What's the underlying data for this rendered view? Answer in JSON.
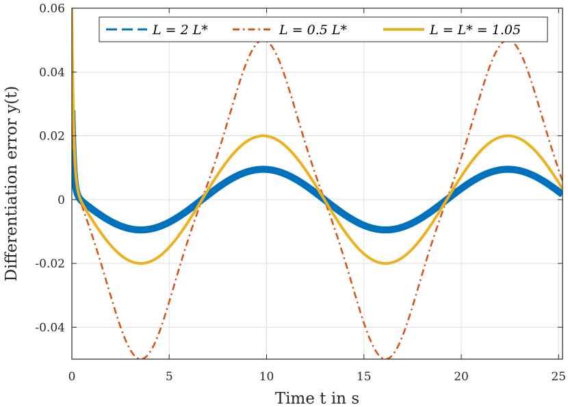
{
  "chart_data": {
    "type": "line",
    "xlabel": "Time t in s",
    "ylabel": "Differentiation error y(t)",
    "xlim": [
      0,
      25.2
    ],
    "ylim": [
      -0.05,
      0.06
    ],
    "xticks": [
      0,
      5,
      10,
      15,
      20,
      25
    ],
    "xtick_labels": [
      "0",
      "5",
      "10",
      "15",
      "20",
      "25"
    ],
    "yticks": [
      -0.04,
      -0.02,
      0,
      0.02,
      0.04,
      0.06
    ],
    "ytick_labels": [
      "-0.04",
      "-0.02",
      "0",
      "0.02",
      "0.04",
      "0.06"
    ],
    "grid": true,
    "legend_position": "top-right",
    "period": 12.57,
    "series": [
      {
        "name": "L = 2 L*",
        "color": "#0072BD",
        "style": "dashed",
        "amplitude": 0.0095,
        "chatter_band": 0.0022,
        "transient_start": 0.028,
        "x": [
          0.4,
          3.3,
          9.6,
          15.9,
          22.1,
          25.2
        ],
        "y": [
          0,
          -0.0095,
          0.0095,
          -0.0095,
          0.0095,
          0
        ]
      },
      {
        "name": "L = 0.5 L*",
        "color": "#D95319",
        "style": "dashdot",
        "amplitude": 0.046,
        "transient_start": 0.032,
        "x": [
          0.4,
          3.6,
          9.9,
          16.2,
          22.3,
          25.2
        ],
        "y": [
          0,
          -0.046,
          0.046,
          -0.046,
          0.046,
          0
        ]
      },
      {
        "name": "L = L* = 1.05",
        "color": "#EDB120",
        "style": "solid",
        "amplitude": 0.02,
        "transient_start": 0.06,
        "x": [
          0.4,
          3.2,
          9.5,
          15.8,
          22.1,
          25.2
        ],
        "y": [
          0,
          -0.02,
          0.02,
          -0.02,
          0.02,
          0
        ]
      }
    ]
  }
}
